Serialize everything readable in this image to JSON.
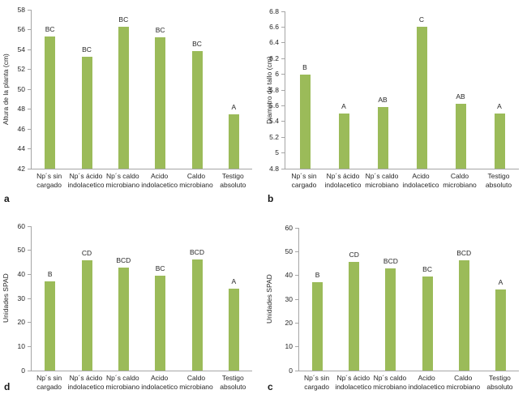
{
  "figure": {
    "background": "#ffffff",
    "colors": {
      "bar": "#9bbb59",
      "axis": "#a6a6a6",
      "text": "#262626"
    }
  },
  "chart_data": [
    {
      "type": "bar",
      "panel_letter": "a",
      "title": "",
      "xlabel": "",
      "ylabel": "Altura de la planta (cm)",
      "ylim": [
        42,
        58
      ],
      "yticks": [
        42,
        44,
        46,
        48,
        50,
        52,
        54,
        56,
        58
      ],
      "grid": false,
      "legend": null,
      "categories": [
        [
          "Np´s sin",
          "cargado"
        ],
        [
          "Np´s ácido",
          "indolacetico"
        ],
        [
          "Np´s caldo",
          "microbiano"
        ],
        [
          "Acido",
          "indolacetico"
        ],
        [
          "Caldo",
          "microbiano"
        ],
        [
          "Testigo",
          "absoluto"
        ]
      ],
      "values": [
        55.3,
        53.3,
        56.3,
        55.2,
        53.8,
        47.5
      ],
      "sig_letters": [
        "BC",
        "BC",
        "BC",
        "BC",
        "BC",
        "A"
      ],
      "bar_color": "#9bbb59"
    },
    {
      "type": "bar",
      "panel_letter": "b",
      "title": "",
      "xlabel": "",
      "ylabel": "Diametro de tallo (cm)",
      "ylim": [
        4.8,
        6.8
      ],
      "yticks": [
        4.8,
        5,
        5.2,
        5.4,
        5.6,
        5.8,
        6,
        6.2,
        6.4,
        6.6,
        6.8
      ],
      "grid": false,
      "legend": null,
      "categories": [
        [
          "Np´s sin",
          "cargado"
        ],
        [
          "Np´s ácido",
          "indolacetico"
        ],
        [
          "Np´s caldo",
          "microbiano"
        ],
        [
          "Acido",
          "indolacetico"
        ],
        [
          "Caldo",
          "microbiano"
        ],
        [
          "Testigo",
          "absoluto"
        ]
      ],
      "values": [
        6.0,
        5.5,
        5.58,
        6.6,
        5.62,
        5.5
      ],
      "sig_letters": [
        "B",
        "A",
        "AB",
        "C",
        "AB",
        "A"
      ],
      "bar_color": "#9bbb59"
    },
    {
      "type": "bar",
      "panel_letter": "d",
      "title": "",
      "xlabel": "",
      "ylabel": "Unidades SPAD",
      "ylim": [
        0,
        60
      ],
      "yticks": [
        0,
        10,
        20,
        30,
        40,
        50,
        60
      ],
      "grid": false,
      "legend": null,
      "categories": [
        [
          "Np´s sin",
          "cargado"
        ],
        [
          "Np´s ácido",
          "indolacetico"
        ],
        [
          "Np´s caldo",
          "microbiano"
        ],
        [
          "Acido",
          "indolacetico"
        ],
        [
          "Caldo",
          "microbiano"
        ],
        [
          "Testigo",
          "absoluto"
        ]
      ],
      "values": [
        37.1,
        45.7,
        42.7,
        39.5,
        46.3,
        34.2
      ],
      "sig_letters": [
        "B",
        "CD",
        "BCD",
        "BC",
        "BCD",
        "A"
      ],
      "bar_color": "#9bbb59"
    },
    {
      "type": "bar",
      "panel_letter": "c",
      "title": "",
      "xlabel": "",
      "ylabel": "Unidades SPAD",
      "ylim": [
        0,
        60
      ],
      "yticks": [
        0,
        10,
        20,
        30,
        40,
        50,
        60
      ],
      "grid": false,
      "legend": null,
      "categories": [
        [
          "Np´s sin",
          "cargado"
        ],
        [
          "Np´s ácido",
          "indolacetico"
        ],
        [
          "Np´s caldo",
          "microbiano"
        ],
        [
          "Acido",
          "indolacetico"
        ],
        [
          "Caldo",
          "microbiano"
        ],
        [
          "Testigo",
          "absoluto"
        ]
      ],
      "values": [
        37.2,
        45.8,
        42.8,
        39.5,
        46.2,
        34.1
      ],
      "sig_letters": [
        "B",
        "CD",
        "BCD",
        "BC",
        "BCD",
        "A"
      ],
      "bar_color": "#9bbb59"
    }
  ]
}
